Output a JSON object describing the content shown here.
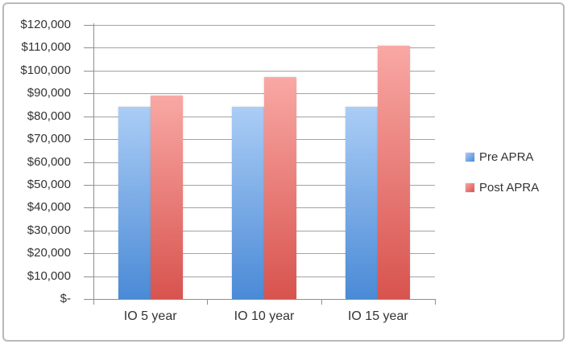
{
  "chart_data": {
    "type": "bar",
    "title": "",
    "categories": [
      "IO 5 year",
      "IO 10 year",
      "IO 15 year"
    ],
    "series": [
      {
        "name": "Pre APRA",
        "values": [
          84000,
          84000,
          84000
        ],
        "color_top": "#abcdf6",
        "color_bottom": "#4a8ad6"
      },
      {
        "name": "Post APRA",
        "values": [
          89000,
          97000,
          111000
        ],
        "color_top": "#f9a8a4",
        "color_bottom": "#d8534e"
      }
    ],
    "y_axis": {
      "min": 0,
      "max": 120000,
      "step": 10000,
      "tick_labels": [
        "$-",
        "$10,000",
        "$20,000",
        "$30,000",
        "$40,000",
        "$50,000",
        "$60,000",
        "$70,000",
        "$80,000",
        "$90,000",
        "$100,000",
        "$110,000",
        "$120,000"
      ]
    },
    "legend_position": "right",
    "legend_entries": [
      "Pre APRA",
      "Post APRA"
    ],
    "grid": true
  },
  "colors": {
    "gridline": "#a3a3a3",
    "axis": "#8f8f8f",
    "text": "#333333",
    "frame_border": "#b9b9b9",
    "background": "#ffffff",
    "pre_apra_top": "#abcdf6",
    "pre_apra_bottom": "#4a8ad6",
    "post_apra_top": "#f9a8a4",
    "post_apra_bottom": "#d8534e"
  }
}
